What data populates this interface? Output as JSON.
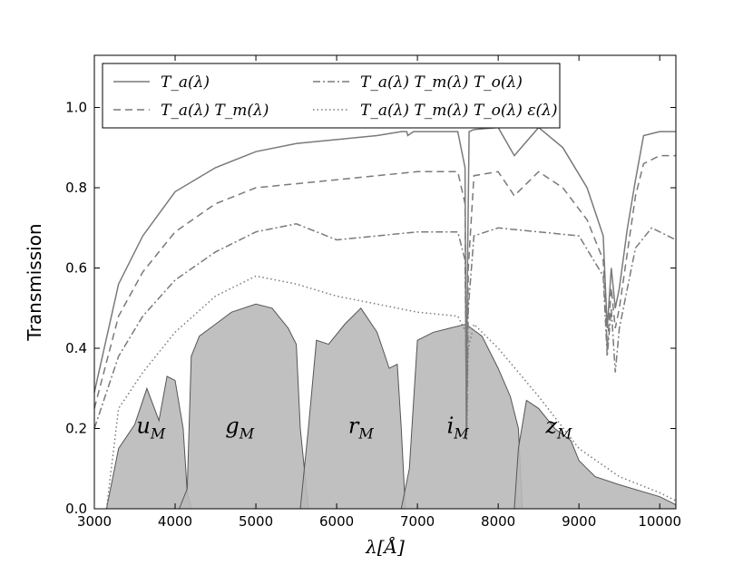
{
  "chart_data": {
    "type": "area",
    "xlabel": "λ[Å]",
    "ylabel": "Transmission",
    "xlim": [
      3000,
      10200
    ],
    "ylim": [
      0.0,
      1.13
    ],
    "x_ticks": [
      3000,
      4000,
      5000,
      6000,
      7000,
      8000,
      9000,
      10000
    ],
    "y_ticks": [
      0.0,
      0.2,
      0.4,
      0.6,
      0.8,
      1.0
    ],
    "y_tick_labels": [
      "0.0",
      "0.2",
      "0.4",
      "0.6",
      "0.8",
      "1.0"
    ],
    "grid": false,
    "legend_position": "top",
    "legend": [
      {
        "label": "T_a(λ)",
        "style": "solid"
      },
      {
        "label": "T_a(λ) T_m(λ)",
        "style": "dashed"
      },
      {
        "label": "T_a(λ) T_m(λ) T_o(λ)",
        "style": "dashdot"
      },
      {
        "label": "T_a(λ) T_m(λ) T_o(λ) ε(λ)",
        "style": "dotted"
      }
    ],
    "series": [
      {
        "name": "T_a(λ)",
        "style": "solid",
        "x": [
          3000,
          3300,
          3600,
          4000,
          4500,
          5000,
          5500,
          6000,
          6500,
          6800,
          6870,
          6880,
          6950,
          7200,
          7500,
          7590,
          7605,
          7620,
          7640,
          7700,
          8000,
          8200,
          8500,
          8800,
          9100,
          9300,
          9350,
          9400,
          9450,
          9500,
          9600,
          9700,
          9800,
          10000,
          10200
        ],
        "y": [
          0.29,
          0.56,
          0.68,
          0.79,
          0.85,
          0.89,
          0.91,
          0.92,
          0.93,
          0.94,
          0.94,
          0.93,
          0.94,
          0.94,
          0.94,
          0.85,
          0.2,
          0.6,
          0.94,
          0.945,
          0.95,
          0.88,
          0.95,
          0.9,
          0.8,
          0.68,
          0.45,
          0.6,
          0.5,
          0.55,
          0.7,
          0.82,
          0.93,
          0.94,
          0.94
        ]
      },
      {
        "name": "T_a(λ) T_m(λ)",
        "style": "dashed",
        "x": [
          3000,
          3300,
          3600,
          4000,
          4500,
          5000,
          5500,
          6000,
          6500,
          7000,
          7500,
          7590,
          7610,
          7630,
          7700,
          8000,
          8200,
          8500,
          8800,
          9100,
          9300,
          9350,
          9400,
          9450,
          9500,
          9700,
          9800,
          10000,
          10200
        ],
        "y": [
          0.25,
          0.48,
          0.59,
          0.69,
          0.76,
          0.8,
          0.81,
          0.82,
          0.83,
          0.84,
          0.84,
          0.76,
          0.2,
          0.6,
          0.83,
          0.84,
          0.78,
          0.84,
          0.8,
          0.72,
          0.62,
          0.4,
          0.55,
          0.45,
          0.5,
          0.78,
          0.86,
          0.88,
          0.88
        ]
      },
      {
        "name": "T_a(λ) T_m(λ) T_o(λ)",
        "style": "dashdot",
        "x": [
          3000,
          3300,
          3600,
          4000,
          4500,
          5000,
          5500,
          6000,
          6500,
          7000,
          7500,
          7590,
          7610,
          7630,
          7700,
          8000,
          8500,
          9000,
          9300,
          9350,
          9400,
          9450,
          9500,
          9700,
          9900,
          10200
        ],
        "y": [
          0.2,
          0.38,
          0.48,
          0.57,
          0.64,
          0.69,
          0.71,
          0.67,
          0.68,
          0.69,
          0.69,
          0.62,
          0.2,
          0.5,
          0.68,
          0.7,
          0.69,
          0.68,
          0.58,
          0.38,
          0.5,
          0.34,
          0.45,
          0.65,
          0.7,
          0.67
        ]
      },
      {
        "name": "T_a(λ) T_m(λ) T_o(λ) ε(λ)",
        "style": "dotted",
        "x": [
          3150,
          3300,
          3600,
          4000,
          4500,
          5000,
          5500,
          6000,
          6500,
          7000,
          7500,
          7600,
          7610,
          7630,
          7700,
          8000,
          8500,
          9000,
          9500,
          10000,
          10200
        ],
        "y": [
          0.0,
          0.25,
          0.34,
          0.44,
          0.53,
          0.58,
          0.56,
          0.53,
          0.51,
          0.49,
          0.48,
          0.44,
          0.17,
          0.4,
          0.46,
          0.4,
          0.28,
          0.15,
          0.08,
          0.04,
          0.02
        ]
      }
    ],
    "bands": [
      {
        "name": "u_M",
        "label": "u",
        "sub": "M",
        "label_x": 3700,
        "label_y": 0.22,
        "x": [
          3150,
          3300,
          3500,
          3650,
          3800,
          3900,
          4000,
          4100,
          4150,
          4200
        ],
        "y": [
          0.0,
          0.15,
          0.21,
          0.3,
          0.22,
          0.33,
          0.32,
          0.2,
          0.04,
          0.0
        ]
      },
      {
        "name": "g_M",
        "label": "g",
        "sub": "M",
        "label_x": 4800,
        "label_y": 0.22,
        "x": [
          4050,
          4150,
          4200,
          4300,
          4500,
          4700,
          5000,
          5200,
          5400,
          5500,
          5550,
          5650
        ],
        "y": [
          0.0,
          0.05,
          0.38,
          0.43,
          0.46,
          0.49,
          0.51,
          0.5,
          0.45,
          0.41,
          0.2,
          0.0
        ]
      },
      {
        "name": "r_M",
        "label": "r",
        "sub": "M",
        "label_x": 6300,
        "label_y": 0.22,
        "x": [
          5550,
          5650,
          5750,
          5900,
          6100,
          6300,
          6500,
          6650,
          6750,
          6800,
          6850
        ],
        "y": [
          0.0,
          0.2,
          0.42,
          0.41,
          0.46,
          0.5,
          0.44,
          0.35,
          0.36,
          0.2,
          0.0
        ]
      },
      {
        "name": "i_M",
        "label": "i",
        "sub": "M",
        "label_x": 7500,
        "label_y": 0.22,
        "x": [
          6800,
          6900,
          7000,
          7200,
          7400,
          7600,
          7800,
          8000,
          8150,
          8250,
          8300
        ],
        "y": [
          0.0,
          0.1,
          0.42,
          0.44,
          0.45,
          0.46,
          0.43,
          0.35,
          0.28,
          0.2,
          0.0
        ]
      },
      {
        "name": "z_M",
        "label": "z",
        "sub": "M",
        "label_x": 8750,
        "label_y": 0.22,
        "x": [
          8200,
          8250,
          8350,
          8500,
          8700,
          8900,
          9000,
          9200,
          9500,
          10000,
          10200
        ],
        "y": [
          0.0,
          0.15,
          0.27,
          0.25,
          0.2,
          0.17,
          0.12,
          0.08,
          0.06,
          0.03,
          0.01
        ]
      }
    ],
    "colors": {
      "band_fill": "#b9b9b9",
      "band_overlap": "#8a8a8a",
      "band_edge": "#555555",
      "curve": "#7a7a7a",
      "axis": "#000000"
    }
  }
}
